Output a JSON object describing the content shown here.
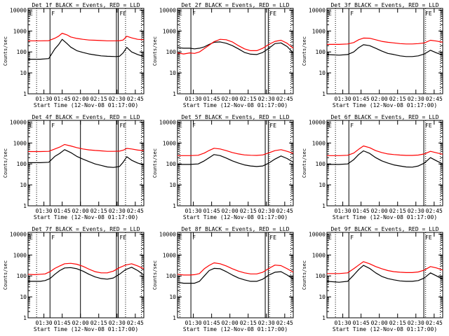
{
  "panels_common": {
    "xlabel": "Start Time (12-Nov-08 01:17:00)",
    "ylabel": "Counts/sec",
    "xticks": [
      "01:30",
      "01:45",
      "02:00",
      "02:15",
      "02:30",
      "02:45"
    ],
    "yticks": [
      "1",
      "10",
      "100",
      "1000",
      "10000"
    ],
    "marker_F": "F",
    "marker_E": "E",
    "marker_FE": "FE"
  },
  "colors": {
    "events": "#000000",
    "lld": "#ff0000",
    "axes": "#000000"
  },
  "chart_data": [
    {
      "type": "line",
      "title": "Det 1f BLACK = Events, RED = LLD",
      "x_range_minutes": [
        0,
        95
      ],
      "ylim": [
        1,
        12000
      ],
      "yscale": "log",
      "grid": false,
      "x": [
        0,
        10,
        17,
        22,
        25,
        28,
        32,
        35,
        40,
        45,
        50,
        55,
        60,
        65,
        72,
        75,
        78,
        81,
        85,
        90,
        95
      ],
      "series": [
        {
          "name": "BLACK = Events",
          "values": [
            45,
            45,
            48,
            140,
            220,
            400,
            250,
            170,
            115,
            95,
            80,
            72,
            65,
            62,
            60,
            62,
            90,
            165,
            100,
            75,
            60
          ]
        },
        {
          "name": "RED = LLD",
          "values": [
            340,
            340,
            345,
            450,
            560,
            780,
            650,
            520,
            440,
            400,
            370,
            360,
            350,
            340,
            340,
            345,
            370,
            560,
            470,
            400,
            380
          ]
        }
      ],
      "vlines_solid": [
        18,
        72.5,
        74
      ],
      "vlines_dotted": [
        7,
        80,
        93
      ]
    },
    {
      "type": "line",
      "title": "Det 2f BLACK = Events, RED = LLD",
      "x_range_minutes": [
        0,
        95
      ],
      "ylim": [
        1,
        12000
      ],
      "yscale": "log",
      "grid": false,
      "x": [
        0,
        5,
        10,
        14,
        18,
        22,
        26,
        30,
        35,
        40,
        45,
        50,
        55,
        60,
        65,
        70,
        75,
        80,
        85,
        90,
        95
      ],
      "series": [
        {
          "name": "BLACK = Events",
          "values": [
            160,
            150,
            150,
            140,
            150,
            175,
            230,
            290,
            300,
            260,
            200,
            140,
            95,
            78,
            75,
            95,
            150,
            250,
            270,
            180,
            90
          ]
        },
        {
          "name": "RED = LLD",
          "values": [
            90,
            80,
            90,
            85,
            100,
            145,
            210,
            310,
            400,
            380,
            300,
            200,
            140,
            115,
            115,
            150,
            230,
            320,
            360,
            260,
            150
          ]
        }
      ],
      "vlines_solid": [
        11,
        72,
        74.5
      ],
      "vlines_dotted": [
        2,
        75.5,
        93
      ]
    },
    {
      "type": "line",
      "title": "Det 3f BLACK = Events, RED = LLD",
      "x_range_minutes": [
        0,
        95
      ],
      "ylim": [
        1,
        12000
      ],
      "yscale": "log",
      "grid": false,
      "x": [
        0,
        10,
        17,
        22,
        26,
        30,
        35,
        40,
        45,
        50,
        55,
        60,
        65,
        70,
        75,
        80,
        85,
        90,
        95
      ],
      "series": [
        {
          "name": "BLACK = Events",
          "values": [
            75,
            70,
            75,
            100,
            160,
            220,
            200,
            150,
            110,
            85,
            75,
            65,
            60,
            60,
            65,
            80,
            120,
            90,
            70
          ]
        },
        {
          "name": "RED = LLD",
          "values": [
            230,
            230,
            240,
            280,
            380,
            460,
            450,
            380,
            320,
            290,
            270,
            250,
            240,
            240,
            250,
            270,
            360,
            330,
            290
          ]
        }
      ],
      "vlines_solid": [
        18,
        79.5
      ],
      "vlines_dotted": [
        7,
        81,
        93
      ]
    },
    {
      "type": "line",
      "title": "Det 4f BLACK = Events, RED = LLD",
      "x_range_minutes": [
        0,
        95
      ],
      "ylim": [
        1,
        12000
      ],
      "yscale": "log",
      "grid": false,
      "x": [
        0,
        10,
        17,
        22,
        26,
        30,
        35,
        40,
        45,
        50,
        55,
        60,
        65,
        70,
        75,
        78,
        81,
        85,
        90,
        95
      ],
      "series": [
        {
          "name": "BLACK = Events",
          "values": [
            115,
            115,
            120,
            230,
            320,
            480,
            350,
            230,
            170,
            130,
            100,
            85,
            72,
            68,
            75,
            120,
            220,
            150,
            110,
            90
          ]
        },
        {
          "name": "RED = LLD",
          "values": [
            390,
            390,
            400,
            520,
            640,
            850,
            720,
            600,
            520,
            470,
            440,
            420,
            400,
            400,
            410,
            450,
            550,
            520,
            460,
            430
          ]
        }
      ],
      "vlines_solid": [
        18,
        43,
        72.5,
        74
      ],
      "vlines_dotted": [
        7,
        80,
        93
      ]
    },
    {
      "type": "line",
      "title": "Det 5f BLACK = Events, RED = LLD",
      "x_range_minutes": [
        0,
        95
      ],
      "ylim": [
        1,
        12000
      ],
      "yscale": "log",
      "grid": false,
      "x": [
        0,
        10,
        17,
        22,
        26,
        30,
        35,
        40,
        45,
        50,
        55,
        60,
        65,
        70,
        75,
        80,
        85,
        90,
        95
      ],
      "series": [
        {
          "name": "BLACK = Events",
          "values": [
            95,
            95,
            100,
            140,
            200,
            280,
            250,
            190,
            140,
            110,
            90,
            80,
            75,
            80,
            110,
            170,
            240,
            180,
            120
          ]
        },
        {
          "name": "RED = LLD",
          "values": [
            250,
            250,
            260,
            330,
            440,
            560,
            520,
            430,
            350,
            300,
            270,
            260,
            255,
            270,
            340,
            430,
            480,
            400,
            320
          ]
        }
      ],
      "vlines_solid": [
        11,
        72,
        74.5
      ],
      "vlines_dotted": [
        2,
        75.5,
        93
      ]
    },
    {
      "type": "line",
      "title": "Det 6f BLACK = Events, RED = LLD",
      "x_range_minutes": [
        0,
        95
      ],
      "ylim": [
        1,
        12000
      ],
      "yscale": "log",
      "grid": false,
      "x": [
        0,
        10,
        17,
        22,
        26,
        30,
        35,
        40,
        45,
        50,
        55,
        60,
        65,
        70,
        75,
        80,
        85,
        90,
        95
      ],
      "series": [
        {
          "name": "BLACK = Events",
          "values": [
            95,
            95,
            100,
            160,
            280,
            420,
            320,
            200,
            140,
            110,
            90,
            80,
            72,
            70,
            80,
            110,
            200,
            140,
            100
          ]
        },
        {
          "name": "RED = LLD",
          "values": [
            250,
            250,
            260,
            330,
            500,
            720,
            600,
            430,
            350,
            300,
            280,
            265,
            255,
            255,
            265,
            300,
            400,
            340,
            290
          ]
        }
      ],
      "vlines_solid": [
        18,
        79.5
      ],
      "vlines_dotted": [
        7,
        81,
        93
      ]
    },
    {
      "type": "line",
      "title": "Det 7f BLACK = Events, RED = LLD",
      "x_range_minutes": [
        0,
        95
      ],
      "ylim": [
        1,
        12000
      ],
      "yscale": "log",
      "grid": false,
      "x": [
        0,
        5,
        10,
        14,
        18,
        22,
        26,
        30,
        35,
        40,
        45,
        50,
        55,
        60,
        65,
        70,
        75,
        80,
        85,
        90,
        95
      ],
      "series": [
        {
          "name": "BLACK = Events",
          "values": [
            55,
            55,
            55,
            60,
            75,
            120,
            180,
            240,
            250,
            220,
            170,
            120,
            90,
            75,
            70,
            80,
            120,
            200,
            260,
            180,
            110
          ]
        },
        {
          "name": "RED = LLD",
          "values": [
            120,
            115,
            120,
            125,
            160,
            230,
            300,
            380,
            400,
            360,
            290,
            210,
            160,
            140,
            140,
            170,
            250,
            330,
            380,
            300,
            220
          ]
        }
      ],
      "vlines_solid": [
        18,
        43,
        72.5,
        74
      ],
      "vlines_dotted": [
        7,
        80,
        93
      ]
    },
    {
      "type": "line",
      "title": "Det 8f BLACK = Events, RED = LLD",
      "x_range_minutes": [
        0,
        95
      ],
      "ylim": [
        1,
        12000
      ],
      "yscale": "log",
      "grid": false,
      "x": [
        0,
        5,
        10,
        14,
        18,
        22,
        26,
        30,
        35,
        40,
        45,
        50,
        55,
        60,
        65,
        70,
        75,
        80,
        85,
        90,
        95
      ],
      "series": [
        {
          "name": "BLACK = Events",
          "values": [
            50,
            45,
            45,
            45,
            55,
            100,
            180,
            230,
            220,
            160,
            110,
            80,
            65,
            55,
            55,
            70,
            110,
            150,
            160,
            110,
            70
          ]
        },
        {
          "name": "RED = LLD",
          "values": [
            120,
            110,
            110,
            115,
            130,
            220,
            320,
            420,
            380,
            300,
            220,
            170,
            140,
            125,
            125,
            150,
            230,
            330,
            310,
            220,
            150
          ]
        }
      ],
      "vlines_solid": [
        11,
        72,
        74.5
      ],
      "vlines_dotted": [
        2,
        75.5,
        93
      ]
    },
    {
      "type": "line",
      "title": "Det 9f BLACK = Events, RED = LLD",
      "x_range_minutes": [
        0,
        95
      ],
      "ylim": [
        1,
        12000
      ],
      "yscale": "log",
      "grid": false,
      "x": [
        0,
        10,
        17,
        22,
        26,
        30,
        35,
        40,
        45,
        50,
        55,
        60,
        65,
        70,
        75,
        80,
        85,
        90,
        95
      ],
      "series": [
        {
          "name": "BLACK = Events",
          "values": [
            55,
            50,
            55,
            110,
            200,
            320,
            230,
            140,
            95,
            75,
            65,
            58,
            55,
            55,
            60,
            80,
            140,
            100,
            70
          ]
        },
        {
          "name": "RED = LLD",
          "values": [
            130,
            130,
            140,
            220,
            330,
            480,
            380,
            280,
            220,
            180,
            160,
            150,
            145,
            145,
            155,
            190,
            280,
            240,
            190
          ]
        }
      ],
      "vlines_solid": [
        18,
        79.5
      ],
      "vlines_dotted": [
        7,
        81,
        93
      ]
    }
  ]
}
